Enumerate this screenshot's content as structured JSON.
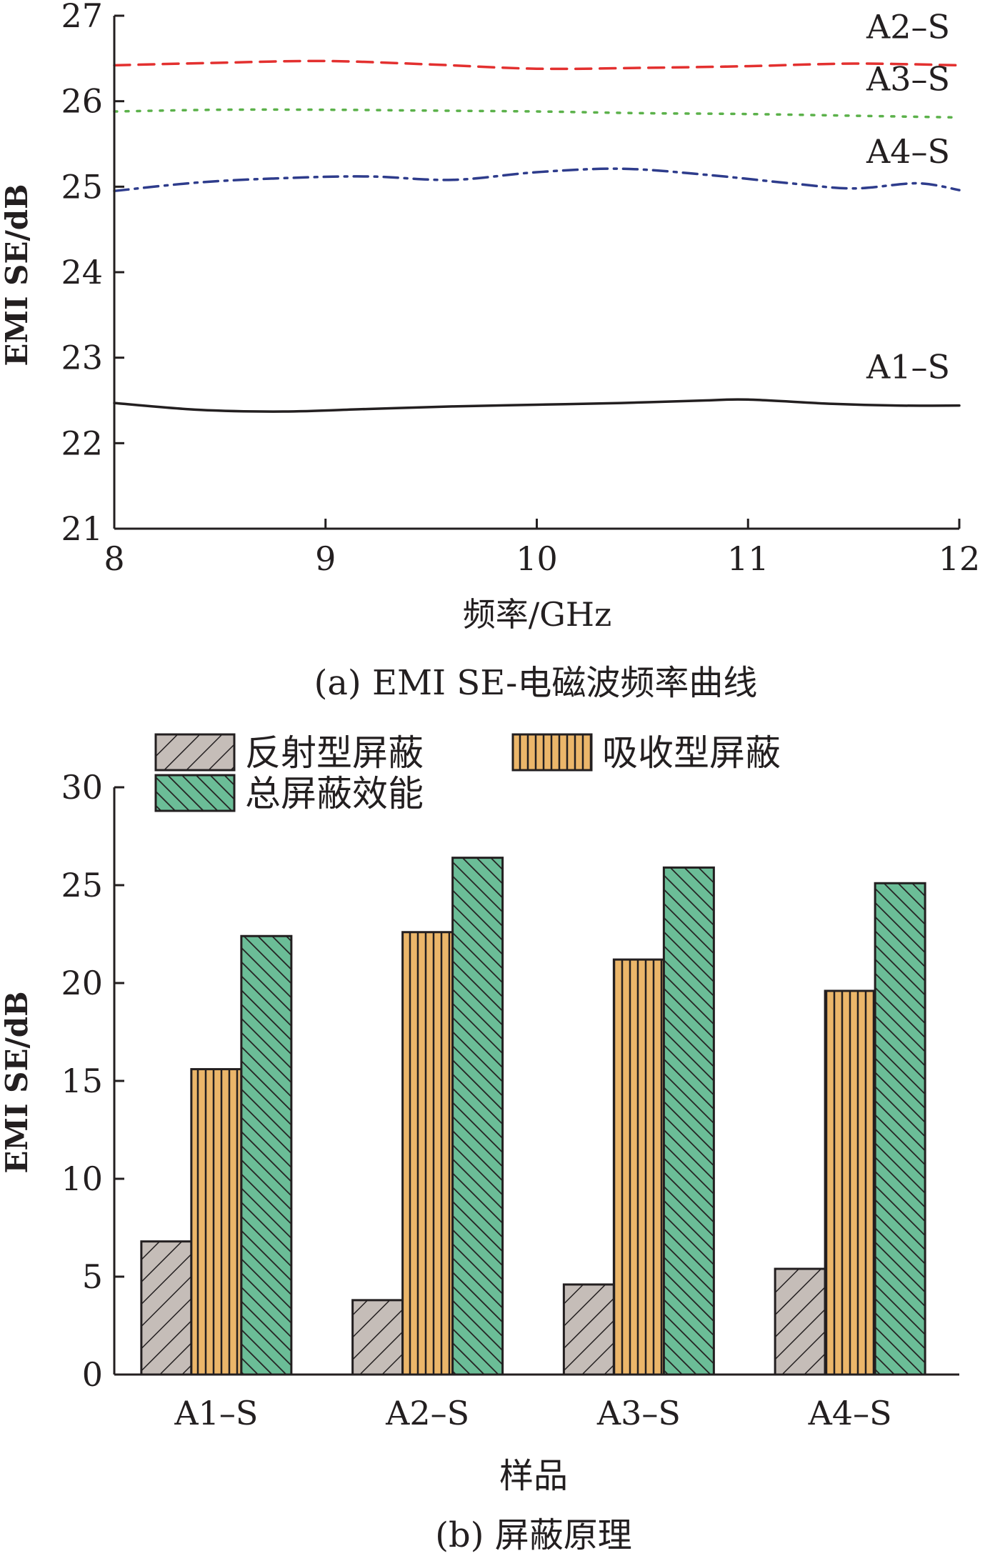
{
  "chart_data": [
    {
      "type": "line",
      "caption": "(a) EMI SE-电磁波频率曲线",
      "xlabel": "频率/GHz",
      "ylabel": "EMI SE/dB",
      "xlim": [
        8,
        12
      ],
      "ylim": [
        21,
        27
      ],
      "xticks": [
        "8",
        "9",
        "10",
        "11",
        "12"
      ],
      "yticks": [
        "21",
        "22",
        "23",
        "24",
        "25",
        "26",
        "27"
      ],
      "grid": false,
      "series": [
        {
          "name": "A2-S",
          "label": "A2–S",
          "color": "#e3302f",
          "style": "dashed",
          "x": [
            8,
            8.5,
            9,
            9.5,
            10,
            10.5,
            11,
            11.5,
            12
          ],
          "y": [
            26.42,
            26.45,
            26.47,
            26.43,
            26.38,
            26.39,
            26.41,
            26.44,
            26.42
          ]
        },
        {
          "name": "A3-S",
          "label": "A3–S",
          "color": "#5bb14a",
          "style": "dotted",
          "x": [
            8,
            8.5,
            9,
            9.5,
            10,
            10.5,
            11,
            11.5,
            12
          ],
          "y": [
            25.88,
            25.9,
            25.9,
            25.89,
            25.88,
            25.86,
            25.85,
            25.83,
            25.81
          ]
        },
        {
          "name": "A4-S",
          "label": "A4–S",
          "color": "#2e3c8c",
          "style": "dashdot",
          "x": [
            8,
            8.4,
            8.8,
            9.2,
            9.6,
            10,
            10.4,
            10.8,
            11.2,
            11.5,
            11.8,
            12
          ],
          "y": [
            24.95,
            25.05,
            25.1,
            25.12,
            25.08,
            25.17,
            25.21,
            25.14,
            25.04,
            24.98,
            25.04,
            24.96
          ]
        },
        {
          "name": "A1-S",
          "label": "A1–S",
          "color": "#231f20",
          "style": "solid",
          "x": [
            8,
            8.4,
            8.8,
            9.2,
            9.6,
            10,
            10.4,
            10.8,
            11,
            11.4,
            11.7,
            12
          ],
          "y": [
            22.47,
            22.39,
            22.37,
            22.4,
            22.43,
            22.45,
            22.47,
            22.5,
            22.51,
            22.46,
            22.44,
            22.44
          ]
        }
      ]
    },
    {
      "type": "bar",
      "caption": "(b) 屏蔽原理",
      "xlabel": "样品",
      "ylabel": "EMI SE/dB",
      "ylim": [
        0,
        30
      ],
      "yticks": [
        "0",
        "5",
        "10",
        "15",
        "20",
        "25",
        "30"
      ],
      "categories": [
        "A1–S",
        "A2–S",
        "A3–S",
        "A4–S"
      ],
      "legend_position": "top-left",
      "series": [
        {
          "name": "反射型屏蔽",
          "color": "#c5bdb8",
          "pattern": "diagonal",
          "values": [
            6.8,
            3.8,
            4.6,
            5.4
          ]
        },
        {
          "name": "吸收型屏蔽",
          "color": "#ebb66a",
          "pattern": "vertical",
          "values": [
            15.6,
            22.6,
            21.2,
            19.6
          ]
        },
        {
          "name": "总屏蔽效能",
          "color": "#6bbd97",
          "pattern": "diagonal-dense",
          "values": [
            22.4,
            26.4,
            25.9,
            25.1
          ]
        }
      ]
    }
  ]
}
